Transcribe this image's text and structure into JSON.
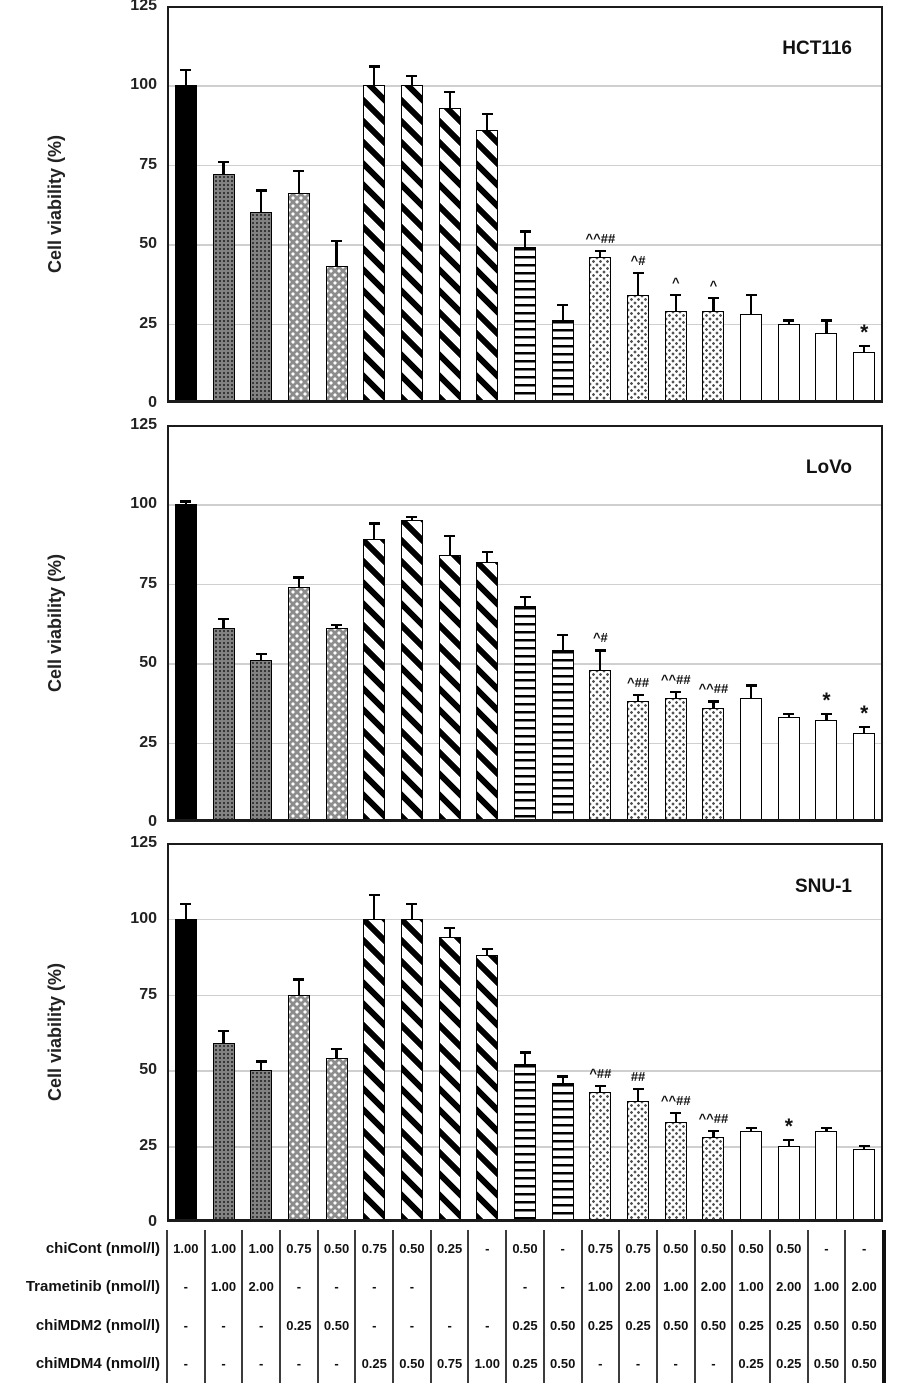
{
  "figure": {
    "y_axis_label": "Cell viability (%)"
  },
  "colors": {
    "bar_fill": "#000000",
    "bar_outline": "#000000",
    "gridline": "#cccccc",
    "background": "#ffffff"
  },
  "bar_patterns": [
    "solid-black",
    "dark-fine-dots",
    "dark-fine-dots",
    "gray-white-dots",
    "gray-white-dots",
    "black-diagonal-stripes",
    "black-diagonal-stripes",
    "black-diagonal-stripes",
    "black-diagonal-stripes",
    "black-horizontal-stripes",
    "black-horizontal-stripes",
    "light-dot-lattice",
    "light-dot-lattice",
    "light-dot-lattice",
    "light-dot-lattice",
    "plain-white",
    "plain-white",
    "plain-white",
    "plain-white"
  ],
  "chart_data": [
    {
      "type": "bar",
      "title": "HCT116",
      "ylabel": "Cell viability (%)",
      "ylim": [
        0,
        125
      ],
      "yticks": [
        0,
        25,
        50,
        75,
        100,
        125
      ],
      "grid": "horizontal",
      "legend": "none",
      "values": [
        100,
        72,
        60,
        66,
        43,
        100,
        100,
        93,
        86,
        49,
        26,
        46,
        34,
        29,
        29,
        28,
        25,
        22,
        16
      ],
      "errors": [
        5,
        4,
        7,
        7,
        8,
        6,
        3,
        5,
        5,
        5,
        5,
        2,
        7,
        5,
        4,
        6,
        1,
        4,
        2
      ],
      "annotations": [
        "",
        "",
        "",
        "",
        "",
        "",
        "",
        "",
        "",
        "",
        "",
        "^^##",
        "^#",
        "^",
        "^",
        "",
        "",
        "",
        "*"
      ]
    },
    {
      "type": "bar",
      "title": "LoVo",
      "ylabel": "Cell viability (%)",
      "ylim": [
        0,
        125
      ],
      "yticks": [
        0,
        25,
        50,
        75,
        100,
        125
      ],
      "grid": "horizontal",
      "legend": "none",
      "values": [
        100,
        61,
        51,
        74,
        61,
        89,
        95,
        84,
        82,
        68,
        54,
        48,
        38,
        39,
        36,
        39,
        33,
        32,
        28
      ],
      "errors": [
        1,
        3,
        2,
        3,
        1,
        5,
        1,
        6,
        3,
        3,
        5,
        6,
        2,
        2,
        2,
        4,
        1,
        2,
        2
      ],
      "annotations": [
        "",
        "",
        "",
        "",
        "",
        "",
        "",
        "",
        "",
        "",
        "",
        "^#",
        "^##",
        "^^##",
        "^^##",
        "",
        "",
        "*",
        "*"
      ]
    },
    {
      "type": "bar",
      "title": "SNU-1",
      "ylabel": "Cell viability (%)",
      "ylim": [
        0,
        125
      ],
      "yticks": [
        0,
        25,
        50,
        75,
        100,
        125
      ],
      "grid": "horizontal",
      "legend": "none",
      "values": [
        100,
        59,
        50,
        75,
        54,
        100,
        100,
        94,
        88,
        52,
        46,
        43,
        40,
        33,
        28,
        30,
        25,
        30,
        24
      ],
      "errors": [
        5,
        4,
        3,
        5,
        3,
        8,
        5,
        3,
        2,
        4,
        2,
        2,
        4,
        3,
        2,
        1,
        2,
        1,
        1
      ],
      "annotations": [
        "",
        "",
        "",
        "",
        "",
        "",
        "",
        "",
        "",
        "",
        "",
        "^##",
        "##",
        "^^##",
        "^^##",
        "",
        "*",
        "",
        ""
      ]
    },
    {
      "type": "table",
      "rows": [
        {
          "label": "chiCont (nmol/l)",
          "values": [
            "1.00",
            "1.00",
            "1.00",
            "0.75",
            "0.50",
            "0.75",
            "0.50",
            "0.25",
            "-",
            "0.50",
            "-",
            "0.75",
            "0.75",
            "0.50",
            "0.50",
            "0.50",
            "0.50",
            "-",
            "-"
          ]
        },
        {
          "label": "Trametinib (nmol/l)",
          "values": [
            "-",
            "1.00",
            "2.00",
            "-",
            "-",
            "-",
            "-",
            "",
            "",
            "-",
            "-",
            "1.00",
            "2.00",
            "1.00",
            "2.00",
            "1.00",
            "2.00",
            "1.00",
            "2.00"
          ]
        },
        {
          "label": "chiMDM2 (nmol/l)",
          "values": [
            "-",
            "-",
            "-",
            "0.25",
            "0.50",
            "-",
            "-",
            "-",
            "-",
            "0.25",
            "0.50",
            "0.25",
            "0.25",
            "0.50",
            "0.50",
            "0.25",
            "0.25",
            "0.50",
            "0.50"
          ]
        },
        {
          "label": "chiMDM4 (nmol/l)",
          "values": [
            "-",
            "-",
            "-",
            "-",
            "-",
            "0.25",
            "0.50",
            "0.75",
            "1.00",
            "0.25",
            "0.50",
            "-",
            "-",
            "-",
            "-",
            "0.25",
            "0.25",
            "0.50",
            "0.50"
          ]
        }
      ]
    }
  ]
}
